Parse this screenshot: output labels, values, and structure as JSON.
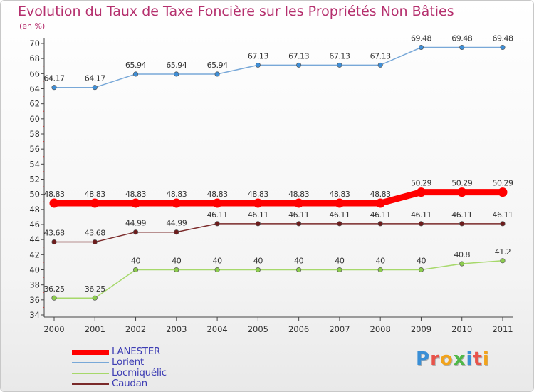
{
  "title": "Evolution du Taux de Taxe Foncière sur les Propriétés Non Bâties",
  "unit_label": "(en %)",
  "brand": {
    "letters": [
      {
        "ch": "P",
        "color": "#3a8fd6"
      },
      {
        "ch": "r",
        "color": "#e8534a"
      },
      {
        "ch": "o",
        "color": "#f2a31b"
      },
      {
        "ch": "x",
        "color": "#4fb848"
      },
      {
        "ch": "i",
        "color": "#3a8fd6"
      },
      {
        "ch": "t",
        "color": "#e8534a"
      },
      {
        "ch": "i",
        "color": "#f2a31b"
      }
    ]
  },
  "chart_data": {
    "type": "line",
    "title": "Evolution du Taux de Taxe Foncière sur les Propriétés Non Bâties",
    "ylabel": "(en %)",
    "xlabel": "",
    "categories": [
      "2000",
      "2001",
      "2002",
      "2003",
      "2004",
      "2005",
      "2006",
      "2007",
      "2008",
      "2009",
      "2010",
      "2011"
    ],
    "ylim": [
      34,
      70
    ],
    "ytick_step": 2,
    "grid": false,
    "legend_position": "bottom-left",
    "series": [
      {
        "name": "LANESTER",
        "color": "#ff0000",
        "emphasis": true,
        "values": [
          48.83,
          48.83,
          48.83,
          48.83,
          48.83,
          48.83,
          48.83,
          48.83,
          48.83,
          50.29,
          50.29,
          50.29
        ],
        "labels": [
          "48.83",
          "48.83",
          "48.83",
          "48.83",
          "48.83",
          "48.83",
          "48.83",
          "48.83",
          "48.83",
          "50.29",
          "50.29",
          "50.29"
        ]
      },
      {
        "name": "Lorient",
        "color": "#78a8d8",
        "marker": "#3e8fd8",
        "values": [
          64.17,
          64.17,
          65.94,
          65.94,
          65.94,
          67.13,
          67.13,
          67.13,
          67.13,
          69.48,
          69.48,
          69.48
        ],
        "labels": [
          "64.17",
          "64.17",
          "65.94",
          "65.94",
          "65.94",
          "67.13",
          "67.13",
          "67.13",
          "67.13",
          "69.48",
          "69.48",
          "69.48"
        ]
      },
      {
        "name": "Locmiquélic",
        "color": "#a6d86a",
        "marker": "#8ccc4e",
        "values": [
          36.25,
          36.25,
          40,
          40,
          40,
          40,
          40,
          40,
          40,
          40,
          40.8,
          41.2
        ],
        "labels": [
          "36.25",
          "36.25",
          "40",
          "40",
          "40",
          "40",
          "40",
          "40",
          "40",
          "40",
          "40.8",
          "41.2"
        ]
      },
      {
        "name": "Caudan",
        "color": "#7a2a2a",
        "marker": "#6e1c1c",
        "values": [
          43.68,
          43.68,
          44.99,
          44.99,
          46.11,
          46.11,
          46.11,
          46.11,
          46.11,
          46.11,
          46.11,
          46.11
        ],
        "labels": [
          "43.68",
          "43.68",
          "44.99",
          "44.99",
          "46.11",
          "46.11",
          "46.11",
          "46.11",
          "46.11",
          "46.11",
          "46.11",
          "46.11"
        ]
      }
    ]
  }
}
